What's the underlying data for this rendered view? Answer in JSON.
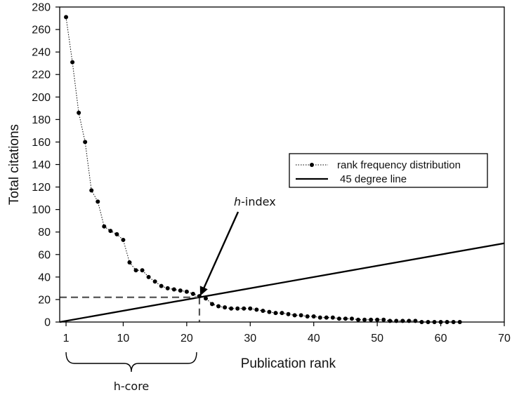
{
  "chart_data": {
    "type": "scatter",
    "xlabel": "Publication rank",
    "ylabel": "Total citations",
    "xlim": [
      0,
      70
    ],
    "ylim": [
      0,
      280
    ],
    "x_ticks": [
      1,
      10,
      20,
      30,
      40,
      50,
      60,
      70
    ],
    "y_ticks": [
      0,
      20,
      40,
      60,
      80,
      100,
      120,
      140,
      160,
      180,
      200,
      220,
      240,
      260,
      280
    ],
    "grid": false,
    "legend_position": "right-middle",
    "series": [
      {
        "name": "rank frequency distribution",
        "style": "dotted line with filled circle markers",
        "x": [
          1,
          2,
          3,
          4,
          5,
          6,
          7,
          8,
          9,
          10,
          11,
          12,
          13,
          14,
          15,
          16,
          17,
          18,
          19,
          20,
          21,
          22,
          23,
          24,
          25,
          26,
          27,
          28,
          29,
          30,
          31,
          32,
          33,
          34,
          35,
          36,
          37,
          38,
          39,
          40,
          41,
          42,
          43,
          44,
          45,
          46,
          47,
          48,
          49,
          50,
          51,
          52,
          53,
          54,
          55,
          56,
          57,
          58,
          59,
          60,
          61,
          62,
          63
        ],
        "y": [
          271,
          231,
          186,
          160,
          117,
          107,
          85,
          81,
          78,
          73,
          53,
          46,
          46,
          40,
          36,
          32,
          30,
          29,
          28,
          27,
          25,
          23,
          21,
          16,
          14,
          13,
          12,
          12,
          12,
          12,
          11,
          10,
          9,
          8,
          8,
          7,
          6,
          6,
          5,
          5,
          4,
          4,
          4,
          3,
          3,
          3,
          2,
          2,
          2,
          2,
          2,
          1,
          1,
          1,
          1,
          1,
          0,
          0,
          0,
          0,
          0,
          0,
          0
        ]
      },
      {
        "name": "45 degree line",
        "style": "solid line",
        "x": [
          0,
          70
        ],
        "y": [
          0,
          70
        ]
      }
    ],
    "annotations": {
      "h_index_label": "h",
      "h_index_suffix": "-index",
      "h_index_value": 22,
      "h_core_label": "h-core",
      "h_core_range": [
        1,
        22
      ]
    }
  },
  "colors": {
    "text": "#111111",
    "line": "#000000",
    "guide": "#555555"
  }
}
